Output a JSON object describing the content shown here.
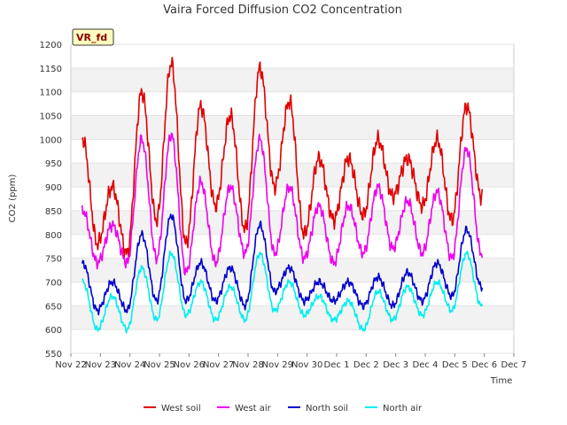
{
  "chart_data": {
    "type": "line",
    "title": "Vaira Forced Diffusion CO2 Concentration",
    "xlabel": "Time",
    "ylabel": "CO2 (ppm)",
    "badge": "VR_fd",
    "ylim": [
      550,
      1200
    ],
    "yticks": [
      550,
      600,
      650,
      700,
      750,
      800,
      850,
      900,
      950,
      1000,
      1050,
      1100,
      1150,
      1200
    ],
    "xlim": [
      0,
      15
    ],
    "xtick_labels": [
      "Nov 22",
      "Nov 23",
      "Nov 24",
      "Nov 25",
      "Nov 26",
      "Nov 27",
      "Nov 28",
      "Nov 29",
      "Nov 30",
      "Dec 1",
      "Dec 2",
      "Dec 3",
      "Dec 4",
      "Dec 5",
      "Dec 6",
      "Dec 7"
    ],
    "x_days": [
      0.4,
      0.9,
      1.4,
      1.9,
      2.4,
      2.9,
      3.4,
      3.9,
      4.4,
      4.9,
      5.4,
      5.9,
      6.4,
      6.9,
      7.4,
      7.9,
      8.4,
      8.9,
      9.4,
      9.9,
      10.4,
      10.9,
      11.4,
      11.9,
      12.4,
      12.9,
      13.4,
      13.9
    ],
    "grid": true,
    "legend_position": "bottom",
    "series": [
      {
        "name": "West soil",
        "color": "#e00000",
        "values": [
          1000,
          780,
          900,
          760,
          1100,
          830,
          1160,
          780,
          1070,
          860,
          1050,
          810,
          1150,
          900,
          1080,
          800,
          960,
          830,
          960,
          840,
          1000,
          880,
          960,
          860,
          1000,
          830,
          1070,
          880
        ]
      },
      {
        "name": "West air",
        "color": "#ee00ee",
        "values": [
          850,
          740,
          820,
          740,
          1000,
          750,
          1010,
          720,
          910,
          740,
          900,
          760,
          1000,
          760,
          900,
          750,
          860,
          740,
          860,
          760,
          900,
          770,
          870,
          760,
          890,
          750,
          980,
          760
        ]
      },
      {
        "name": "North soil",
        "color": "#0000cc",
        "values": [
          740,
          640,
          700,
          640,
          800,
          660,
          840,
          660,
          740,
          660,
          730,
          650,
          820,
          680,
          730,
          660,
          700,
          660,
          700,
          650,
          710,
          650,
          720,
          660,
          740,
          670,
          810,
          690
        ]
      },
      {
        "name": "North air",
        "color": "#00eeee",
        "values": [
          700,
          600,
          670,
          600,
          730,
          620,
          760,
          630,
          700,
          620,
          690,
          620,
          760,
          640,
          700,
          630,
          670,
          620,
          660,
          600,
          680,
          620,
          690,
          630,
          700,
          640,
          760,
          650
        ]
      }
    ]
  }
}
